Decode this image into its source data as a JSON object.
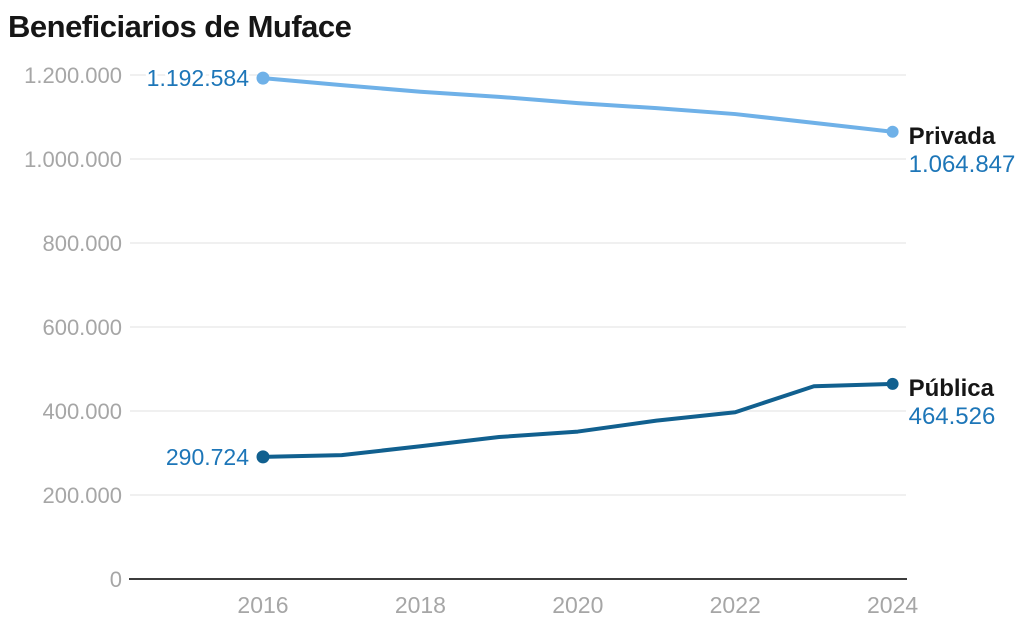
{
  "chart_data": {
    "type": "line",
    "title": "Beneficiarios de Muface",
    "x": [
      2016,
      2017,
      2018,
      2019,
      2020,
      2021,
      2022,
      2023,
      2024
    ],
    "x_tick_labels": [
      "2016",
      "2018",
      "2020",
      "2022",
      "2024"
    ],
    "x_tick_years": [
      2016,
      2018,
      2020,
      2022,
      2024
    ],
    "y_ticks": [
      {
        "value": 0,
        "label": "0"
      },
      {
        "value": 200000,
        "label": "200.000"
      },
      {
        "value": 400000,
        "label": "400.000"
      },
      {
        "value": 600000,
        "label": "600.000"
      },
      {
        "value": 800000,
        "label": "800.000"
      },
      {
        "value": 1000000,
        "label": "1.000.000"
      },
      {
        "value": 1200000,
        "label": "1.200.000"
      }
    ],
    "ylim": [
      0,
      1200000
    ],
    "grid": "horizontal",
    "legend_position": "end-of-line",
    "series": [
      {
        "name": "Privada",
        "color": "#6fb1e8",
        "values": [
          1192584,
          1176000,
          1160000,
          1148000,
          1133000,
          1121000,
          1107000,
          1086000,
          1064847
        ],
        "first_value_label": "1.192.584",
        "last_value_label": "1.064.847"
      },
      {
        "name": "Pública",
        "color": "#11608f",
        "values": [
          290724,
          295000,
          316000,
          338000,
          351000,
          377000,
          397000,
          459000,
          464526
        ],
        "first_value_label": "290.724",
        "last_value_label": "464.526"
      }
    ],
    "colors": {
      "value_label": "#1d76b8",
      "axis_label": "#a6a6a6",
      "grid_line": "#ececec",
      "axis_line": "#3c3c3c",
      "series_name": "#161616",
      "title": "#161616"
    }
  }
}
